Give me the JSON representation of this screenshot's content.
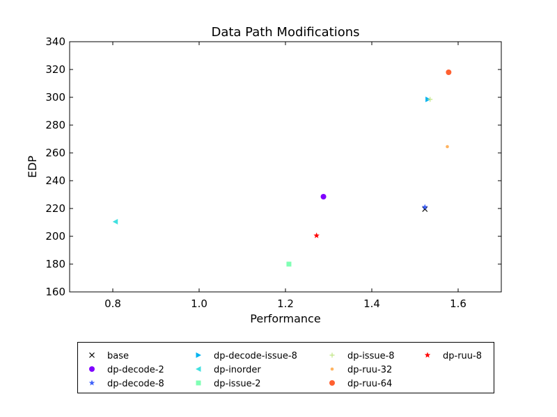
{
  "chart_data": {
    "type": "scatter",
    "title": "Data Path Modifications",
    "xlabel": "Performance",
    "ylabel": "EDP",
    "xlim": [
      0.7,
      1.7
    ],
    "ylim": [
      160,
      340
    ],
    "xticks": [
      "0.8",
      "1.0",
      "1.2",
      "1.4",
      "1.6"
    ],
    "yticks": [
      "160",
      "180",
      "200",
      "220",
      "240",
      "260",
      "280",
      "300",
      "320",
      "340"
    ],
    "grid": false,
    "legend_placement": "below plot, 4 columns",
    "series": [
      {
        "name": "base",
        "marker": "x",
        "color": "#000000",
        "x": 1.523,
        "y": 219.5
      },
      {
        "name": "dp-decode-2",
        "marker": "circle",
        "color": "#7f00ff",
        "x": 1.288,
        "y": 228.5
      },
      {
        "name": "dp-decode-8",
        "marker": "star",
        "color": "#4062fa",
        "x": 1.523,
        "y": 221.0
      },
      {
        "name": "dp-decode-issue-8",
        "marker": "triangle-right",
        "color": "#01b3f0",
        "x": 1.53,
        "y": 298.5
      },
      {
        "name": "dp-inorder",
        "marker": "triangle-left",
        "color": "#41e0e0",
        "x": 0.806,
        "y": 210.5
      },
      {
        "name": "dp-issue-2",
        "marker": "square",
        "color": "#80ffb4",
        "x": 1.208,
        "y": 180.0
      },
      {
        "name": "dp-issue-8",
        "marker": "plus",
        "color": "#c0e585",
        "x": 1.535,
        "y": 298.5
      },
      {
        "name": "dp-ruu-32",
        "marker": "dot",
        "color": "#ffb360",
        "x": 1.575,
        "y": 264.5
      },
      {
        "name": "dp-ruu-64",
        "marker": "circle",
        "color": "#ff6030",
        "x": 1.578,
        "y": 318.0
      },
      {
        "name": "dp-ruu-8",
        "marker": "star",
        "color": "#ff0000",
        "x": 1.272,
        "y": 200.5
      }
    ]
  }
}
